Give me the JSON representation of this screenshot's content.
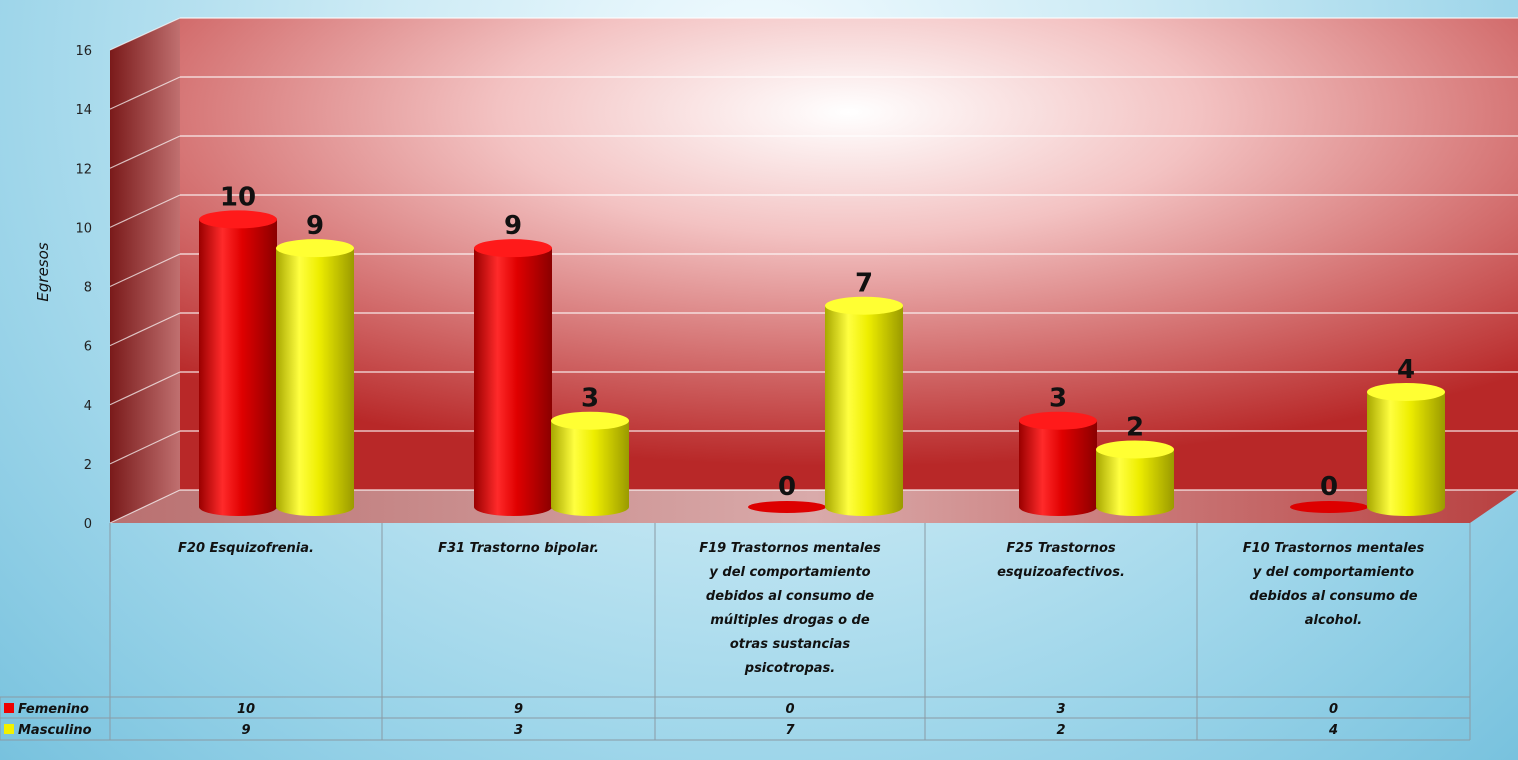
{
  "chart_data": {
    "type": "bar",
    "ylabel": "Egresos",
    "ylim": [
      0,
      16
    ],
    "yticks": [
      "0",
      "2",
      "4",
      "6",
      "8",
      "10",
      "12",
      "14",
      "16"
    ],
    "categories": [
      "F20 Esquizofrenia.",
      "F31 Trastorno bipolar.",
      "F19 Trastornos mentales y del comportamiento debidos al consumo de múltiples drogas o de otras sustancias psicotropas.",
      "F25 Trastornos esquizoafectivos.",
      "F10 Trastornos mentales y del comportamiento debidos al consumo de alcohol."
    ],
    "category_lines": [
      [
        "F20 Esquizofrenia."
      ],
      [
        "F31 Trastorno bipolar."
      ],
      [
        "F19 Trastornos mentales",
        "y del comportamiento",
        "debidos al consumo de",
        "múltiples drogas o de",
        "otras sustancias",
        "psicotropas."
      ],
      [
        "F25 Trastornos",
        "esquizoafectivos."
      ],
      [
        "F10 Trastornos mentales",
        "y del comportamiento",
        "debidos al consumo de",
        "alcohol."
      ]
    ],
    "series": [
      {
        "name": "Femenino",
        "values": [
          10,
          9,
          0,
          3,
          0
        ],
        "color": "#ee0000"
      },
      {
        "name": "Masculino",
        "values": [
          9,
          3,
          7,
          2,
          4
        ],
        "color": "#f2f200"
      }
    ],
    "table_values": [
      [
        "10",
        "9",
        "0",
        "3",
        "0"
      ],
      [
        "9",
        "3",
        "7",
        "2",
        "4"
      ]
    ],
    "grid": true,
    "legend": "data-table-left"
  }
}
